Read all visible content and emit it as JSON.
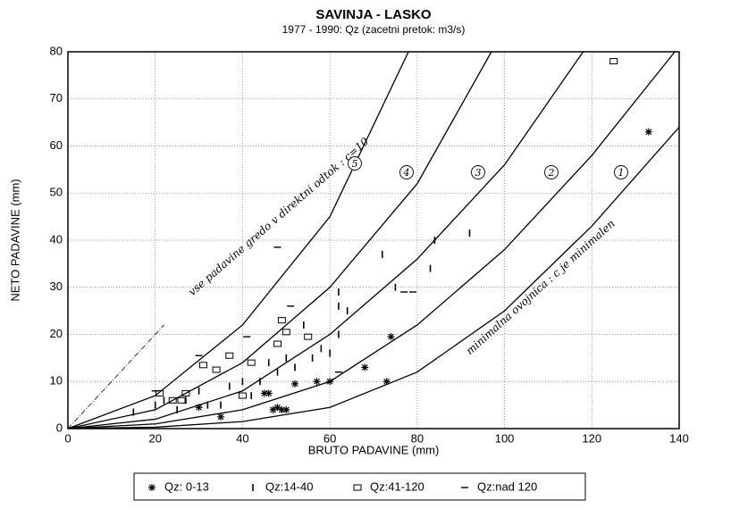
{
  "chart_data": {
    "type": "scatter",
    "title": "SAVINJA - LASKO",
    "subtitle": "1977 - 1990:  Qz (zacetni pretok: m3/s)",
    "x_label": "BRUTO PADAVINE (mm)",
    "y_label": "NETO PADAVINE (mm)",
    "xlim": [
      0,
      140
    ],
    "ylim": [
      0,
      80
    ],
    "xticks": [
      0,
      20,
      40,
      60,
      80,
      100,
      120,
      140
    ],
    "yticks": [
      0,
      10,
      20,
      30,
      40,
      50,
      60,
      70,
      80
    ],
    "grid": true,
    "annotations": [
      "vse padavine gredo v direktni odtok : c=10",
      "minimalna ovojnica : c je minimalen"
    ],
    "reference_line": {
      "x": [
        0,
        22
      ],
      "values": [
        0,
        22
      ]
    },
    "curves": [
      {
        "label": "1",
        "x": [
          0,
          20,
          40,
          60,
          80,
          100,
          120,
          140
        ],
        "values": [
          0,
          0.3,
          1.5,
          4.5,
          12,
          25,
          43,
          64
        ]
      },
      {
        "label": "2",
        "x": [
          0,
          20,
          40,
          60,
          80,
          100,
          120,
          139
        ],
        "values": [
          0,
          1,
          4,
          10,
          22,
          38,
          58,
          80
        ]
      },
      {
        "label": "3",
        "x": [
          0,
          20,
          40,
          60,
          80,
          100,
          118
        ],
        "values": [
          0,
          2,
          8,
          20,
          36,
          56,
          80
        ]
      },
      {
        "label": "4",
        "x": [
          0,
          20,
          40,
          60,
          80,
          97
        ],
        "values": [
          0,
          4,
          14,
          30,
          52,
          80
        ]
      },
      {
        "label": "5",
        "x": [
          0,
          20,
          40,
          60,
          78
        ],
        "values": [
          0,
          7,
          22,
          45,
          80
        ]
      }
    ],
    "series": [
      {
        "name": "Qz: 0-13",
        "marker": "asterisk",
        "color": "#000",
        "x": [
          30,
          35,
          45,
          46,
          47,
          48,
          49,
          50,
          52,
          57,
          60,
          68,
          73,
          74,
          133
        ],
        "values": [
          4.5,
          2.5,
          7.5,
          7.5,
          4,
          4.5,
          4,
          4,
          9.5,
          10,
          10,
          13,
          10,
          19.5,
          63
        ]
      },
      {
        "name": "Qz:14-40",
        "marker": "tick",
        "color": "#000",
        "x": [
          15,
          20,
          22,
          25,
          27,
          30,
          32,
          35,
          37,
          40,
          42,
          44,
          46,
          48,
          50,
          52,
          54,
          56,
          58,
          60,
          62,
          62,
          62,
          64,
          72,
          75,
          83,
          84,
          92
        ],
        "values": [
          3.5,
          5,
          6,
          4,
          6,
          8,
          5,
          5,
          9,
          10,
          7,
          10,
          14,
          12,
          15,
          13,
          22,
          15,
          17,
          16,
          29,
          20,
          26,
          25,
          37,
          30,
          34,
          40,
          41.5
        ]
      },
      {
        "name": "Qz:41-120",
        "marker": "square",
        "color": "#000",
        "x": [
          21,
          24,
          26,
          27,
          31,
          34,
          37,
          40,
          42,
          48,
          49,
          50,
          55,
          125
        ],
        "values": [
          7.5,
          6,
          6,
          7.5,
          13.5,
          12.5,
          15.5,
          7,
          14,
          18,
          23,
          20.5,
          19.5,
          78
        ]
      },
      {
        "name": "Qz:nad 120",
        "marker": "dash",
        "color": "#000",
        "x": [
          20,
          30,
          41,
          48,
          51,
          77,
          79,
          62
        ],
        "values": [
          8,
          15.5,
          19.5,
          38.5,
          26,
          29,
          29,
          12
        ]
      }
    ]
  }
}
